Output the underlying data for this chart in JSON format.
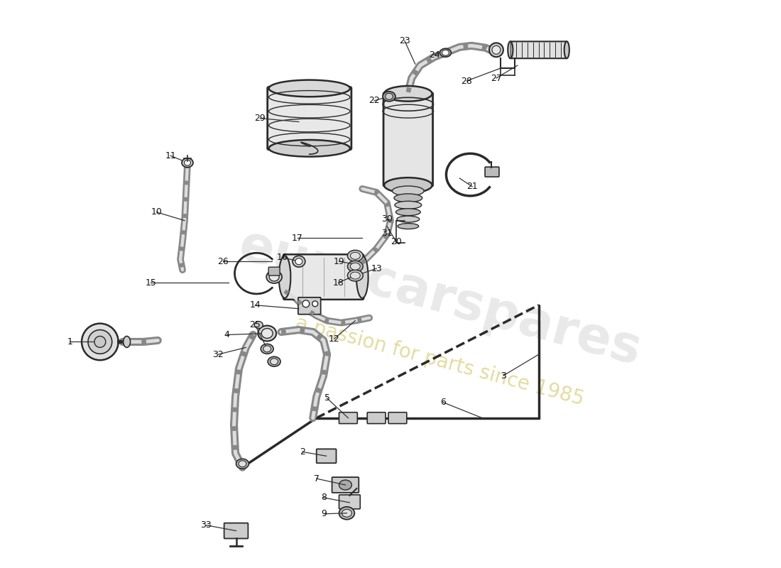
{
  "background": "#ffffff",
  "watermark1": "eurocarspares",
  "watermark2": "a passion for parts since 1985",
  "gray": "#2a2a2a",
  "mid_gray": "#888888",
  "light_gray": "#cccccc"
}
